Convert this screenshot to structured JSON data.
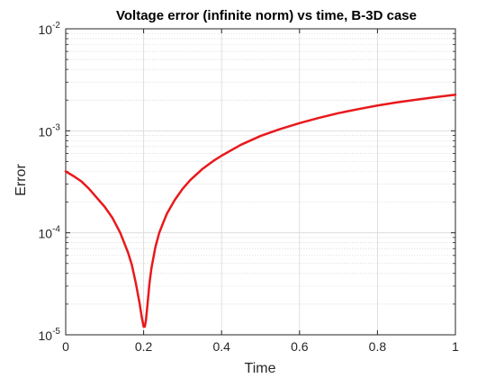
{
  "chart_data": {
    "type": "line",
    "title": "Voltage error (infinite norm) vs time, B-3D case",
    "xlabel": "Time",
    "ylabel": "Error",
    "xlim": [
      0,
      1
    ],
    "ylim": [
      1e-05,
      0.01
    ],
    "y_scale": "log",
    "grid": true,
    "minor_grid": true,
    "x_ticks": [
      0,
      0.2,
      0.4,
      0.6,
      0.8,
      1
    ],
    "x_tick_labels": [
      "0",
      "0.2",
      "0.4",
      "0.6",
      "0.8",
      "1"
    ],
    "y_ticks": [
      1e-05,
      0.0001,
      0.001,
      0.01
    ],
    "y_tick_labels": [
      {
        "base": "10",
        "exp": "-5"
      },
      {
        "base": "10",
        "exp": "-4"
      },
      {
        "base": "10",
        "exp": "-3"
      },
      {
        "base": "10",
        "exp": "-2"
      }
    ],
    "line_color": "#e8191c",
    "series": [
      {
        "x": [
          0,
          0.02,
          0.04,
          0.06,
          0.08,
          0.1,
          0.12,
          0.14,
          0.16,
          0.17,
          0.18,
          0.19,
          0.195,
          0.2,
          0.203,
          0.206,
          0.21,
          0.215,
          0.22,
          0.23,
          0.24,
          0.25,
          0.26,
          0.28,
          0.3,
          0.32,
          0.35,
          0.38,
          0.4,
          0.45,
          0.5,
          0.55,
          0.6,
          0.65,
          0.7,
          0.75,
          0.8,
          0.85,
          0.9,
          0.95,
          1.0
        ],
        "y": [
          0.0004,
          0.00036,
          0.00032,
          0.00027,
          0.00022,
          0.00018,
          0.00014,
          0.0001,
          6.4e-05,
          4.8e-05,
          3.2e-05,
          2e-05,
          1.5e-05,
          1.2e-05,
          1.2e-05,
          1.4e-05,
          2e-05,
          3.2e-05,
          4.5e-05,
          7.2e-05,
          0.0001,
          0.000125,
          0.000155,
          0.00021,
          0.00027,
          0.00033,
          0.00042,
          0.00051,
          0.00057,
          0.00073,
          0.00089,
          0.00104,
          0.00119,
          0.00134,
          0.00149,
          0.00163,
          0.00177,
          0.0019,
          0.00202,
          0.00214,
          0.00226
        ]
      }
    ]
  }
}
